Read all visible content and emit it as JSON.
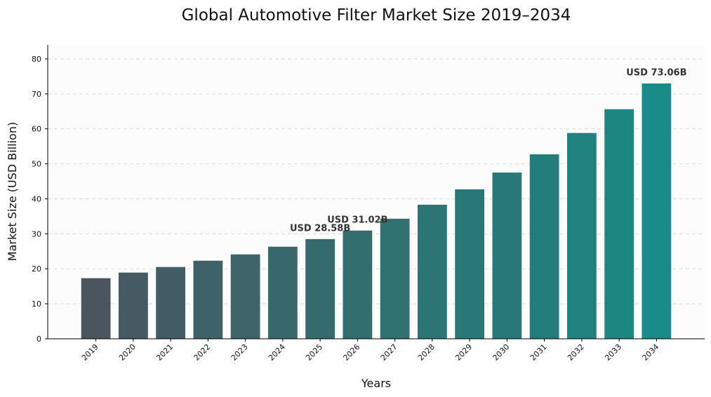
{
  "chart_data": {
    "type": "bar",
    "title": "Global Automotive Filter Market Size 2019–2034",
    "xlabel": "Years",
    "ylabel": "Market Size (USD Billion)",
    "ylim": [
      0,
      84
    ],
    "yticks": [
      0,
      10,
      20,
      30,
      40,
      50,
      60,
      70,
      80
    ],
    "grid": "horizontal dashed",
    "categories": [
      "2019",
      "2020",
      "2021",
      "2022",
      "2023",
      "2024",
      "2025",
      "2026",
      "2027",
      "2028",
      "2029",
      "2030",
      "2031",
      "2032",
      "2033",
      "2034"
    ],
    "values": [
      17.4,
      19.0,
      20.6,
      22.4,
      24.2,
      26.4,
      28.58,
      31.02,
      34.4,
      38.4,
      42.8,
      47.6,
      52.8,
      58.9,
      65.7,
      73.06
    ],
    "bar_colors": [
      "#4a5560",
      "#465a64",
      "#435d66",
      "#3f6168",
      "#3c6469",
      "#38686b",
      "#356b6d",
      "#336e6f",
      "#307272",
      "#2d7474",
      "#2a7777",
      "#277a79",
      "#237e7b",
      "#20827e",
      "#1d8681",
      "#198c89"
    ],
    "annotations": [
      {
        "category": "2025",
        "text": "USD 28.58B"
      },
      {
        "category": "2026",
        "text": "USD 31.02B"
      },
      {
        "category": "2034",
        "text": "USD 73.06B"
      }
    ]
  }
}
